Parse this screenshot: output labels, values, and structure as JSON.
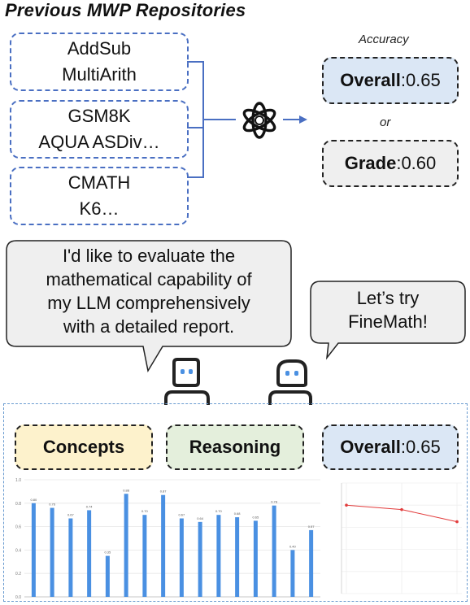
{
  "title": "Previous MWP Repositories",
  "repositories": [
    {
      "line1": "AddSub",
      "line2": "MultiArith"
    },
    {
      "line1": "GSM8K",
      "line2": "AQUA ASDiv…"
    },
    {
      "line1": "CMATH",
      "line2": "K6…"
    }
  ],
  "accuracy_label": "Accuracy",
  "result_overall": {
    "label": "Overall",
    "value": ":0.65"
  },
  "or_label": "or",
  "result_grade": {
    "label": "Grade",
    "value": ":0.60"
  },
  "bubble_left": {
    "lines": [
      "I'd like to evaluate the",
      "mathematical capability of",
      "my LLM comprehensively",
      "with a detailed report."
    ]
  },
  "bubble_right": {
    "lines": [
      "Let’s try",
      "FineMath!"
    ]
  },
  "tags": {
    "concepts": "Concepts",
    "reasoning": "Reasoning",
    "overall_label": "Overall",
    "overall_value": ":0.65"
  },
  "colors": {
    "repo_border": "#4a6fc2",
    "overall_fill": "#dbe7f5",
    "grade_fill": "#efefef",
    "concepts_fill": "#fdf2cc",
    "reasoning_fill": "#e4efdc",
    "bubble_fill": "#efefef",
    "bar": "#4a90e2",
    "line": "#e23c3c"
  },
  "chart_data": [
    {
      "type": "bar",
      "values": [
        0.8,
        0.76,
        0.67,
        0.74,
        0.35,
        0.88,
        0.7,
        0.87,
        0.67,
        0.64,
        0.7,
        0.68,
        0.65,
        0.78,
        0.4,
        0.57
      ],
      "ylim": [
        0,
        1
      ],
      "yticks": [
        "1.0",
        "0.8",
        "0.6",
        "0.4",
        "0.2",
        "0.0"
      ]
    },
    {
      "type": "line",
      "x": [
        0,
        1,
        2
      ],
      "values": [
        0.8,
        0.76,
        0.65
      ],
      "ylim": [
        0,
        1
      ]
    }
  ]
}
